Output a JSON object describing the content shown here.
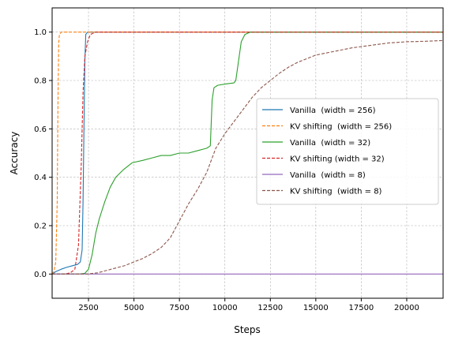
{
  "chart_data": {
    "type": "line",
    "title": "",
    "xlabel": "Steps",
    "ylabel": "Accuracy",
    "xlim": [
      500,
      22000
    ],
    "ylim": [
      -0.1,
      1.1
    ],
    "x_ticks": [
      2500,
      5000,
      7500,
      10000,
      12500,
      15000,
      17500,
      20000
    ],
    "x_tick_labels": [
      "2500",
      "5000",
      "7500",
      "10000",
      "12500",
      "15000",
      "17500",
      "20000"
    ],
    "y_ticks": [
      0.0,
      0.2,
      0.4,
      0.6,
      0.8,
      1.0
    ],
    "y_tick_labels": [
      "0.0",
      "0.2",
      "0.4",
      "0.6",
      "0.8",
      "1.0"
    ],
    "grid": true,
    "legend_position": "center-right",
    "series": [
      {
        "name": "Vanilla  (width = 256)",
        "color": "#1f77b4",
        "dash": "solid",
        "points": [
          [
            500,
            0
          ],
          [
            700,
            0.01
          ],
          [
            1000,
            0.02
          ],
          [
            1300,
            0.028
          ],
          [
            1600,
            0.034
          ],
          [
            1900,
            0.04
          ],
          [
            2050,
            0.05
          ],
          [
            2150,
            0.1
          ],
          [
            2200,
            0.3
          ],
          [
            2250,
            0.6
          ],
          [
            2300,
            0.88
          ],
          [
            2350,
            0.99
          ],
          [
            2450,
            1.0
          ],
          [
            22000,
            1.0
          ]
        ]
      },
      {
        "name": "KV shifting  (width = 256)",
        "color": "#ff7f0e",
        "dash": "dashed",
        "points": [
          [
            500,
            0
          ],
          [
            600,
            0.01
          ],
          [
            700,
            0.05
          ],
          [
            780,
            0.3
          ],
          [
            820,
            0.7
          ],
          [
            860,
            0.95
          ],
          [
            900,
            0.99
          ],
          [
            1000,
            1.0
          ],
          [
            22000,
            1.0
          ]
        ]
      },
      {
        "name": "Vanilla  (width = 32)",
        "color": "#2ca02c",
        "dash": "solid",
        "points": [
          [
            500,
            0
          ],
          [
            2000,
            0
          ],
          [
            2300,
            0.003
          ],
          [
            2500,
            0.02
          ],
          [
            2700,
            0.08
          ],
          [
            2900,
            0.17
          ],
          [
            3100,
            0.23
          ],
          [
            3400,
            0.3
          ],
          [
            3700,
            0.36
          ],
          [
            4000,
            0.4
          ],
          [
            4400,
            0.43
          ],
          [
            4900,
            0.46
          ],
          [
            5500,
            0.47
          ],
          [
            6000,
            0.48
          ],
          [
            6500,
            0.49
          ],
          [
            7000,
            0.49
          ],
          [
            7500,
            0.5
          ],
          [
            8000,
            0.5
          ],
          [
            8500,
            0.51
          ],
          [
            9000,
            0.52
          ],
          [
            9200,
            0.53
          ],
          [
            9300,
            0.72
          ],
          [
            9400,
            0.77
          ],
          [
            9600,
            0.78
          ],
          [
            10000,
            0.785
          ],
          [
            10500,
            0.79
          ],
          [
            10600,
            0.8
          ],
          [
            10750,
            0.88
          ],
          [
            10900,
            0.96
          ],
          [
            11100,
            0.99
          ],
          [
            11400,
            1.0
          ],
          [
            22000,
            1.0
          ]
        ]
      },
      {
        "name": "KV shifting (width = 32)",
        "color": "#d62728",
        "dash": "dashed",
        "points": [
          [
            500,
            0
          ],
          [
            1200,
            0
          ],
          [
            1500,
            0.005
          ],
          [
            1750,
            0.02
          ],
          [
            1950,
            0.12
          ],
          [
            2100,
            0.45
          ],
          [
            2200,
            0.75
          ],
          [
            2300,
            0.9
          ],
          [
            2450,
            0.96
          ],
          [
            2600,
            0.99
          ],
          [
            2900,
            1.0
          ],
          [
            22000,
            1.0
          ]
        ]
      },
      {
        "name": "Vanilla  (width = 8)",
        "color": "#9467bd",
        "dash": "solid",
        "points": [
          [
            500,
            0
          ],
          [
            22000,
            0
          ]
        ]
      },
      {
        "name": "KV shifting  (width = 8)",
        "color": "#8c564b",
        "dash": "dashed",
        "points": [
          [
            500,
            0
          ],
          [
            2400,
            0
          ],
          [
            3000,
            0.005
          ],
          [
            3500,
            0.015
          ],
          [
            4000,
            0.025
          ],
          [
            4500,
            0.035
          ],
          [
            5000,
            0.05
          ],
          [
            5500,
            0.065
          ],
          [
            6000,
            0.085
          ],
          [
            6500,
            0.11
          ],
          [
            7000,
            0.15
          ],
          [
            7500,
            0.22
          ],
          [
            8000,
            0.29
          ],
          [
            8500,
            0.35
          ],
          [
            9000,
            0.42
          ],
          [
            9500,
            0.52
          ],
          [
            10000,
            0.58
          ],
          [
            10500,
            0.63
          ],
          [
            11000,
            0.68
          ],
          [
            11500,
            0.73
          ],
          [
            12000,
            0.77
          ],
          [
            12500,
            0.8
          ],
          [
            13000,
            0.83
          ],
          [
            13500,
            0.855
          ],
          [
            14000,
            0.875
          ],
          [
            14500,
            0.89
          ],
          [
            15000,
            0.905
          ],
          [
            16000,
            0.92
          ],
          [
            17000,
            0.935
          ],
          [
            18000,
            0.945
          ],
          [
            19000,
            0.955
          ],
          [
            20000,
            0.96
          ],
          [
            21000,
            0.962
          ],
          [
            22000,
            0.965
          ]
        ]
      }
    ]
  }
}
